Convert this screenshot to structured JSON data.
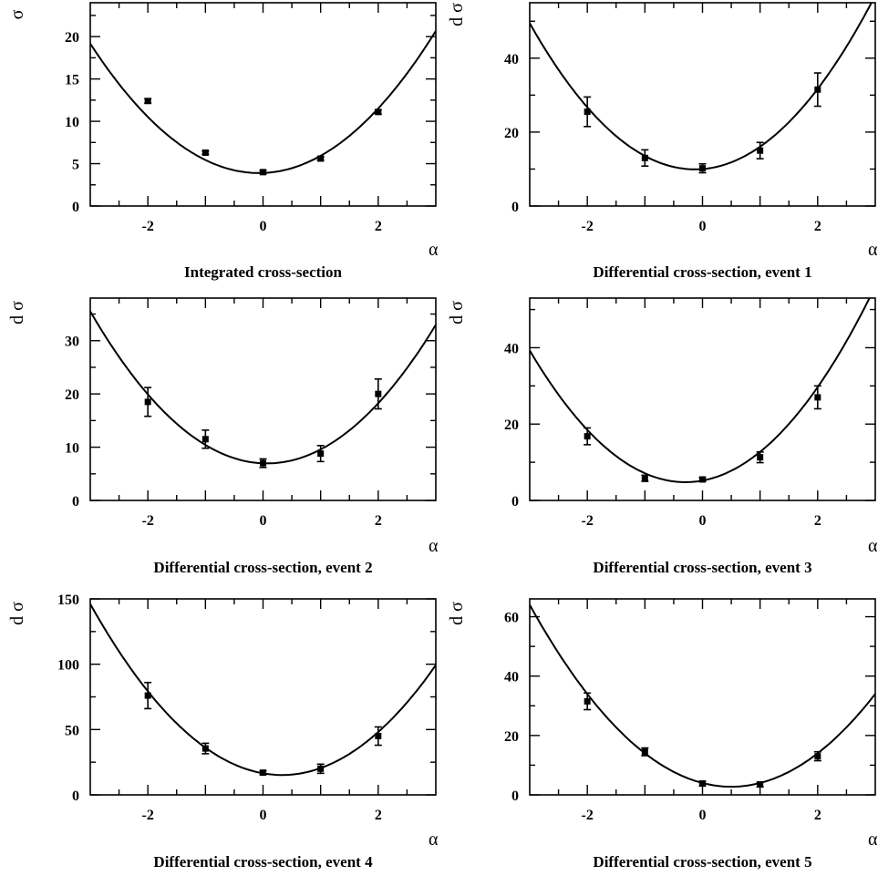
{
  "chart_data": [
    {
      "type": "scatter",
      "title": "Integrated cross-section",
      "xlabel": "α",
      "ylabel": "σ",
      "xlim": [
        -3,
        3
      ],
      "ylim": [
        0,
        24
      ],
      "xticks": [
        -2,
        0,
        2
      ],
      "yticks": [
        0,
        5,
        10,
        15,
        20
      ],
      "points": [
        {
          "x": -2,
          "y": 12.4,
          "err": 0.25
        },
        {
          "x": -1,
          "y": 6.3,
          "err": 0.2
        },
        {
          "x": 0,
          "y": 4.0,
          "err": 0.2
        },
        {
          "x": 1,
          "y": 5.6,
          "err": 0.2
        },
        {
          "x": 2,
          "y": 11.1,
          "err": 0.25
        }
      ],
      "fit": {
        "a": 1.78,
        "b": 0.25,
        "c": 3.9
      }
    },
    {
      "type": "scatter",
      "title": "Differential cross-section, event 1",
      "xlabel": "α",
      "ylabel": "d σ",
      "xlim": [
        -3,
        3
      ],
      "ylim": [
        0,
        55
      ],
      "xticks": [
        -2,
        0,
        2
      ],
      "yticks": [
        0,
        20,
        40
      ],
      "points": [
        {
          "x": -2,
          "y": 25.5,
          "err": 4
        },
        {
          "x": -1,
          "y": 13.0,
          "err": 2.2
        },
        {
          "x": 0,
          "y": 10.2,
          "err": 1.2
        },
        {
          "x": 1,
          "y": 15.0,
          "err": 2.2
        },
        {
          "x": 2,
          "y": 31.5,
          "err": 4.5
        }
      ],
      "fit": {
        "a": 4.8,
        "b": 1.25,
        "c": 10.0
      }
    },
    {
      "type": "scatter",
      "title": "Differential cross-section, event 2",
      "xlabel": "α",
      "ylabel": "d σ",
      "xlim": [
        -3,
        3
      ],
      "ylim": [
        0,
        38
      ],
      "xticks": [
        -2,
        0,
        2
      ],
      "yticks": [
        0,
        10,
        20,
        30
      ],
      "points": [
        {
          "x": -2,
          "y": 18.5,
          "err": 2.7
        },
        {
          "x": -1,
          "y": 11.5,
          "err": 1.7
        },
        {
          "x": 0,
          "y": 7.0,
          "err": 0.8
        },
        {
          "x": 1,
          "y": 8.8,
          "err": 1.5
        },
        {
          "x": 2,
          "y": 20.0,
          "err": 2.8
        }
      ],
      "fit": {
        "a": 3.03,
        "b": -0.42,
        "c": 6.97
      }
    },
    {
      "type": "scatter",
      "title": "Differential cross-section, event 3",
      "xlabel": "α",
      "ylabel": "d σ",
      "xlim": [
        -3,
        3
      ],
      "ylim": [
        0,
        53
      ],
      "xticks": [
        -2,
        0,
        2
      ],
      "yticks": [
        0,
        20,
        40
      ],
      "points": [
        {
          "x": -2,
          "y": 16.8,
          "err": 2.2
        },
        {
          "x": -1,
          "y": 5.8,
          "err": 0.8
        },
        {
          "x": 0,
          "y": 5.5,
          "err": 0.5
        },
        {
          "x": 1,
          "y": 11.3,
          "err": 1.4
        },
        {
          "x": 2,
          "y": 27.0,
          "err": 3
        }
      ],
      "fit": {
        "a": 4.72,
        "b": 2.8,
        "c": 5.2
      }
    },
    {
      "type": "scatter",
      "title": "Differential cross-section, event 4",
      "xlabel": "α",
      "ylabel": "d σ",
      "xlim": [
        -3,
        3
      ],
      "ylim": [
        0,
        150
      ],
      "xticks": [
        -2,
        0,
        2
      ],
      "yticks": [
        0,
        50,
        100,
        150
      ],
      "points": [
        {
          "x": -2,
          "y": 76,
          "err": 10
        },
        {
          "x": -1,
          "y": 35.5,
          "err": 4
        },
        {
          "x": 0,
          "y": 17.0,
          "err": 1.5
        },
        {
          "x": 1,
          "y": 20.0,
          "err": 3.5
        },
        {
          "x": 2,
          "y": 45.0,
          "err": 7
        }
      ],
      "fit": {
        "a": 11.8,
        "b": -7.8,
        "c": 16.5
      }
    },
    {
      "type": "scatter",
      "title": "Differential cross-section, event 5",
      "xlabel": "α",
      "ylabel": "d σ",
      "xlim": [
        -3,
        3
      ],
      "ylim": [
        0,
        66
      ],
      "xticks": [
        -2,
        0,
        2
      ],
      "yticks": [
        0,
        20,
        40,
        60
      ],
      "points": [
        {
          "x": -2,
          "y": 31.5,
          "err": 2.8
        },
        {
          "x": -1,
          "y": 14.5,
          "err": 1.3
        },
        {
          "x": 0,
          "y": 3.8,
          "err": 0.8
        },
        {
          "x": 1,
          "y": 3.5,
          "err": 0.8
        },
        {
          "x": 2,
          "y": 13.0,
          "err": 1.5
        }
      ],
      "fit": {
        "a": 5.0,
        "b": -5.0,
        "c": 4.0
      }
    }
  ]
}
